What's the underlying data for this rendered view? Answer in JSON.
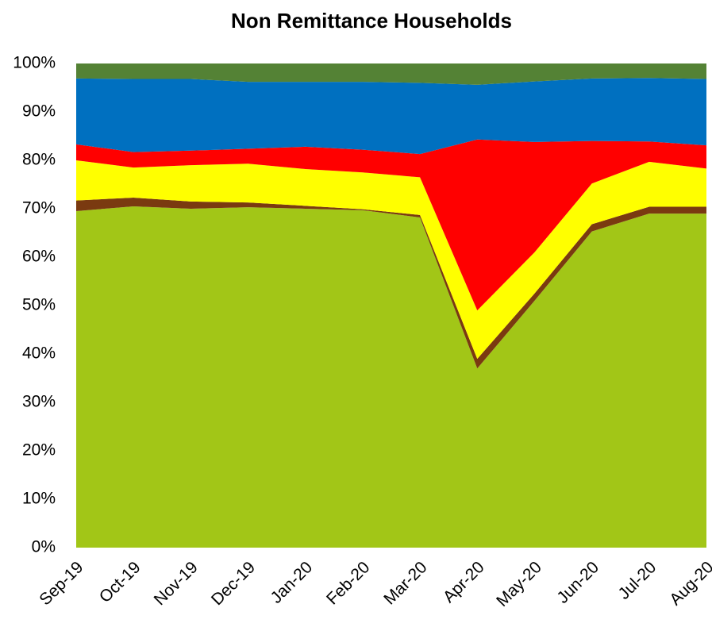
{
  "chart_data": {
    "type": "stacked-area",
    "title": "Non Remittance Households",
    "categories": [
      "Sep-19",
      "Oct-19",
      "Nov-19",
      "Dec-19",
      "Jan-20",
      "Feb-20",
      "Mar-20",
      "Apr-20",
      "May-20",
      "Jun-20",
      "Jul-20",
      "Aug-20"
    ],
    "series": [
      {
        "color": "#a2c617",
        "values": [
          69.5,
          70.5,
          70,
          70.3,
          70,
          69.7,
          68.2,
          37,
          51,
          65.3,
          69,
          69
        ]
      },
      {
        "color": "#7a3a10",
        "values": [
          2.2,
          1.8,
          1.5,
          1.0,
          0.6,
          0.2,
          0.5,
          2.0,
          1.5,
          1.5,
          1.4,
          1.4
        ]
      },
      {
        "color": "#ffff00",
        "values": [
          8.3,
          6.2,
          7.5,
          8.0,
          7.6,
          7.6,
          7.8,
          10,
          8.5,
          8.4,
          9.3,
          7.9
        ]
      },
      {
        "color": "#ff0000",
        "values": [
          3.3,
          3.2,
          3.0,
          3.1,
          4.6,
          4.7,
          4.8,
          35.3,
          22.8,
          8.8,
          4.2,
          4.8
        ]
      },
      {
        "color": "#0070c0",
        "values": [
          13.6,
          15.1,
          14.8,
          13.8,
          13.4,
          14.0,
          14.7,
          11.3,
          12.5,
          12.9,
          13.1,
          13.7
        ]
      },
      {
        "color": "#548235",
        "values": [
          3.1,
          3.2,
          3.2,
          3.8,
          3.8,
          3.8,
          4.0,
          4.4,
          3.7,
          3.1,
          3.0,
          3.2
        ]
      }
    ],
    "ylim": [
      0,
      100
    ],
    "yticks": [
      {
        "value": 0,
        "label": "0%"
      },
      {
        "value": 10,
        "label": "10%"
      },
      {
        "value": 20,
        "label": "20%"
      },
      {
        "value": 30,
        "label": "30%"
      },
      {
        "value": 40,
        "label": "40%"
      },
      {
        "value": 50,
        "label": "50%"
      },
      {
        "value": 60,
        "label": "60%"
      },
      {
        "value": 70,
        "label": "70%"
      },
      {
        "value": 80,
        "label": "80%"
      },
      {
        "value": 90,
        "label": "90%"
      },
      {
        "value": 100,
        "label": "100%"
      }
    ],
    "grid": false
  }
}
